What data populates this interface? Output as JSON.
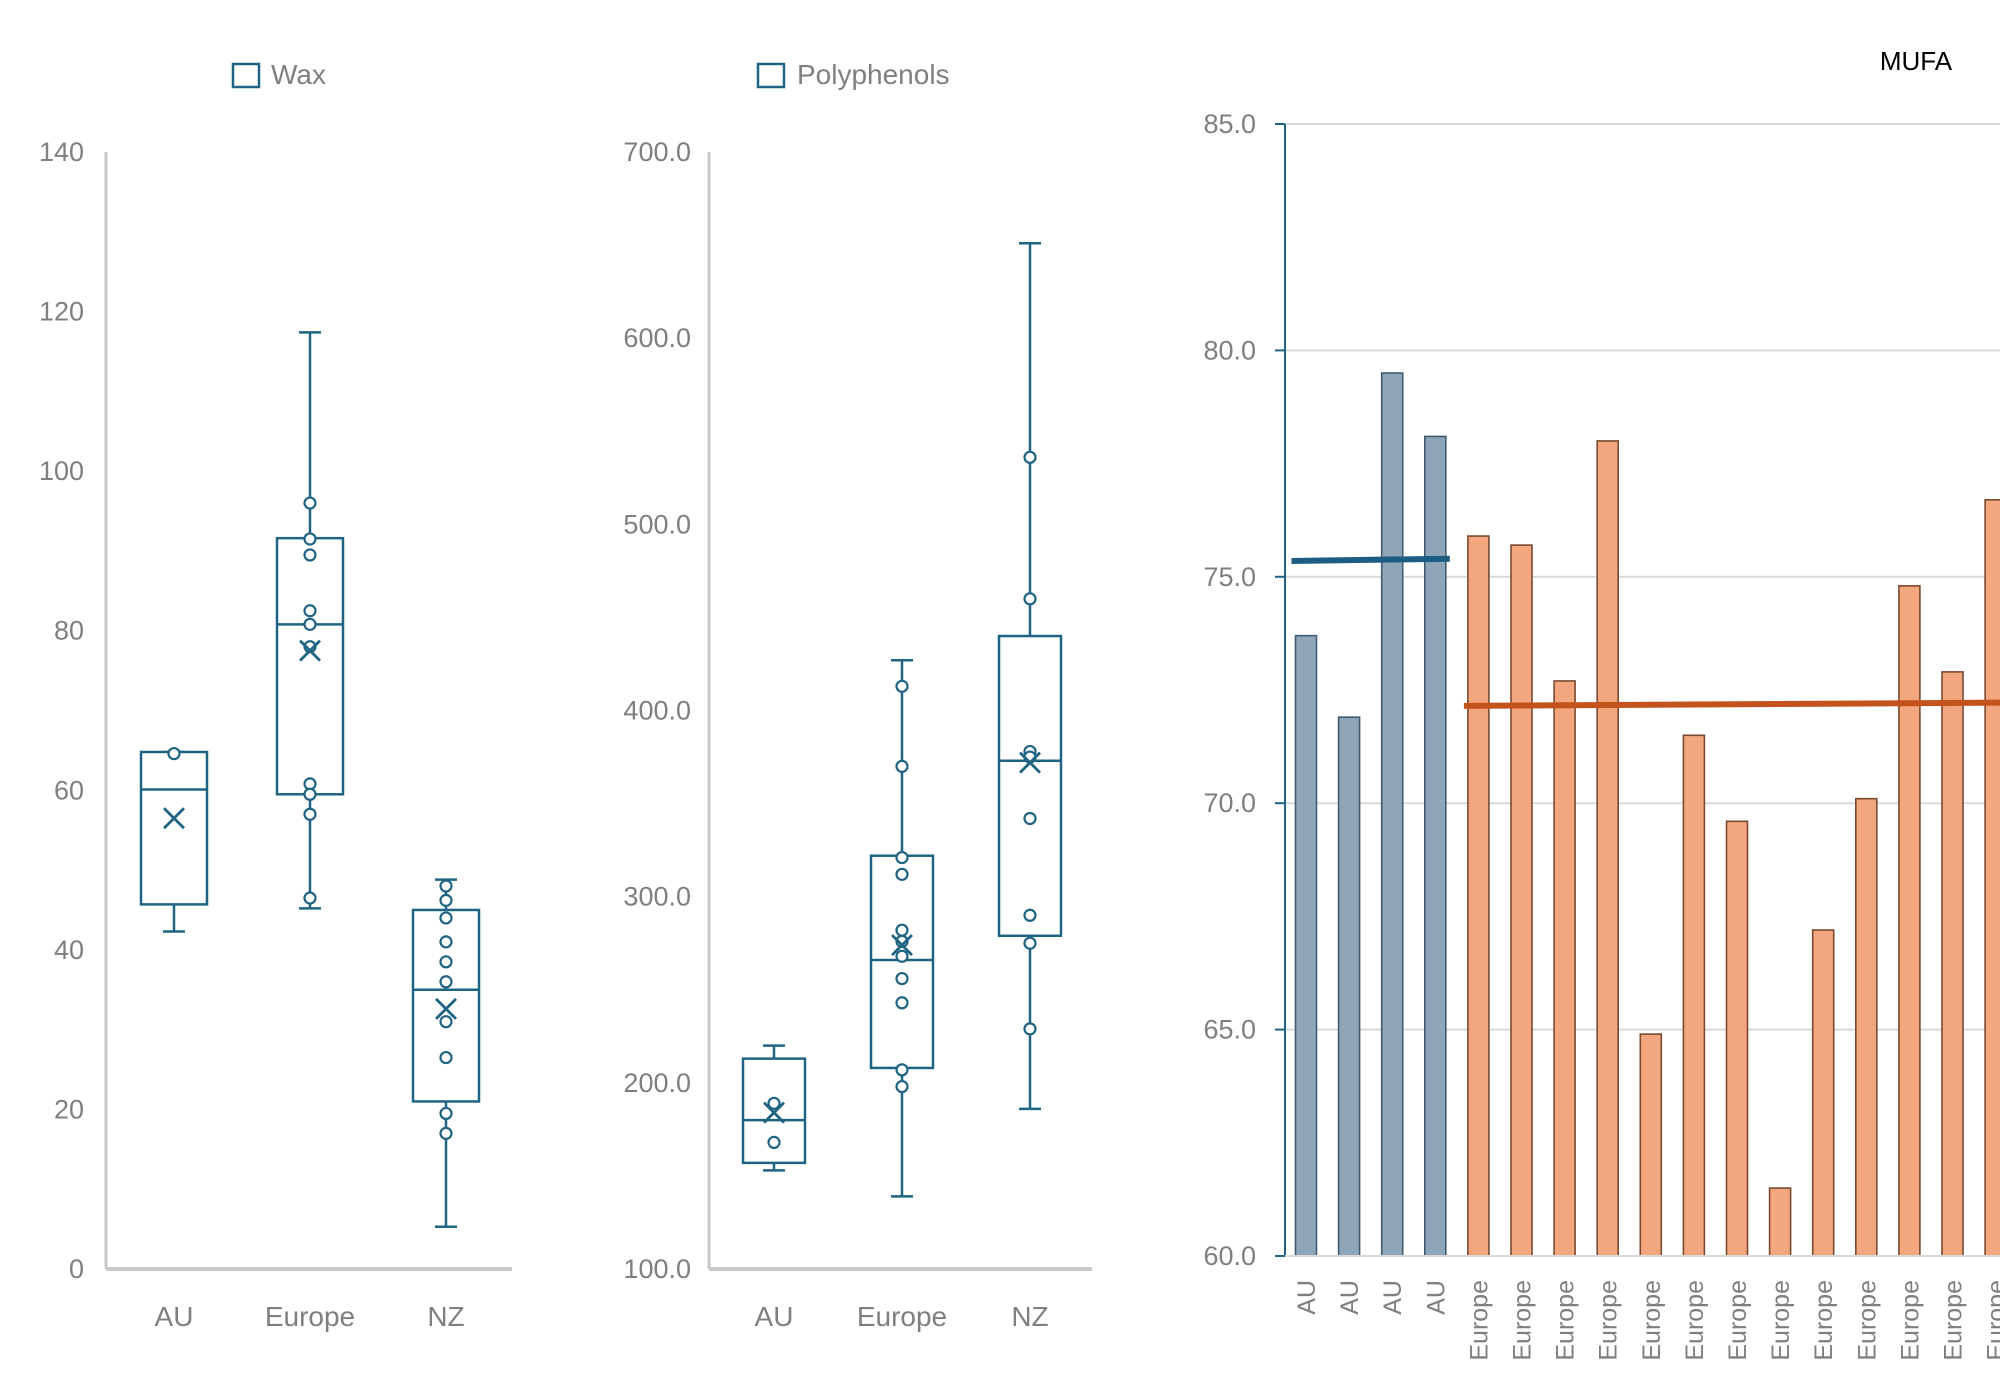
{
  "colors": {
    "box": "#1f6482",
    "axis": "#c8c8c8",
    "axis_dark": "#1f6482",
    "grid": "#d9d9d9",
    "tick_text": "#7f7f7f",
    "au_bar_fill": "#8fa6b8",
    "au_bar_stroke": "#3f5b73",
    "europe_bar_fill": "#f2a77e",
    "europe_bar_stroke": "#7a4a2e",
    "au_mean_line": "#1d5d83",
    "europe_mean_line": "#c4521d"
  },
  "chart_data": [
    {
      "type": "box",
      "legend": "Wax",
      "legend_position": "top",
      "categories": [
        "AU",
        "Europe",
        "NZ"
      ],
      "ylim": [
        0,
        140
      ],
      "yticks": [
        0,
        20,
        40,
        60,
        80,
        100,
        120,
        140
      ],
      "ytick_labels": [
        "0",
        "20",
        "40",
        "60",
        "80",
        "100",
        "120",
        "140"
      ],
      "boxes": [
        {
          "category": "AU",
          "whisker_low": 42.3,
          "q1": 45.7,
          "median": 60.1,
          "q3": 64.8,
          "whisker_high": 64.8,
          "mean": 56.5,
          "points": [
            64.6
          ]
        },
        {
          "category": "Europe",
          "whisker_low": 45.2,
          "q1": 59.5,
          "median": 80.8,
          "q3": 91.6,
          "whisker_high": 117.4,
          "mean": 77.5,
          "points": [
            96.0,
            91.5,
            89.5,
            82.5,
            80.8,
            78.0,
            60.8,
            59.5,
            57.0,
            46.5
          ]
        },
        {
          "category": "NZ",
          "whisker_low": 5.3,
          "q1": 21.0,
          "median": 35.0,
          "q3": 45.0,
          "whisker_high": 48.8,
          "mean": 32.6,
          "points": [
            48.0,
            46.2,
            44.0,
            41.0,
            38.5,
            36.0,
            31.0,
            26.5,
            19.5,
            17.0
          ]
        }
      ]
    },
    {
      "type": "box",
      "legend": "Polyphenols",
      "legend_position": "top",
      "categories": [
        "AU",
        "Europe",
        "NZ"
      ],
      "ylim": [
        100,
        700
      ],
      "yticks": [
        100,
        200,
        300,
        400,
        500,
        600,
        700
      ],
      "ytick_labels": [
        "100.0",
        "200.0",
        "300.0",
        "400.0",
        "500.0",
        "600.0",
        "700.0"
      ],
      "boxes": [
        {
          "category": "AU",
          "whisker_low": 153,
          "q1": 157,
          "median": 180,
          "q3": 213,
          "whisker_high": 220,
          "mean": 184,
          "points": [
            189,
            168
          ]
        },
        {
          "category": "Europe",
          "whisker_low": 139,
          "q1": 208,
          "median": 266,
          "q3": 322,
          "whisker_high": 427,
          "mean": 274,
          "points": [
            413,
            370,
            321,
            312,
            282,
            276,
            268,
            256,
            243,
            207,
            198
          ]
        },
        {
          "category": "NZ",
          "whisker_low": 186,
          "q1": 279,
          "median": 373,
          "q3": 440,
          "whisker_high": 651,
          "mean": 372,
          "points": [
            536,
            460,
            378,
            375,
            342,
            290,
            275,
            229
          ]
        }
      ]
    },
    {
      "type": "bar",
      "title": "MUFA",
      "ylim": [
        60,
        85
      ],
      "yticks": [
        60,
        65,
        70,
        75,
        80,
        85
      ],
      "ytick_labels": [
        "60.0",
        "65.0",
        "70.0",
        "75.0",
        "80.0",
        "85.0"
      ],
      "categories": [
        "AU",
        "AU",
        "AU",
        "AU",
        "Europe",
        "Europe",
        "Europe",
        "Europe",
        "Europe",
        "Europe",
        "Europe",
        "Europe",
        "Europe",
        "Europe",
        "Europe",
        "Europe",
        "Europe"
      ],
      "values": [
        73.7,
        71.9,
        79.5,
        78.1,
        75.9,
        75.7,
        72.7,
        78.0,
        64.9,
        71.5,
        69.6,
        61.5,
        67.2,
        70.1,
        74.8,
        72.9,
        76.7
      ],
      "groups": [
        "AU",
        "AU",
        "AU",
        "AU",
        "Europe",
        "Europe",
        "Europe",
        "Europe",
        "Europe",
        "Europe",
        "Europe",
        "Europe",
        "Europe",
        "Europe",
        "Europe",
        "Europe",
        "Europe"
      ],
      "mean_lines": [
        {
          "group": "AU",
          "y_start": 75.35,
          "y_end": 75.4
        },
        {
          "group": "Europe",
          "y_start": 72.15,
          "y_end": 72.22
        }
      ]
    }
  ]
}
